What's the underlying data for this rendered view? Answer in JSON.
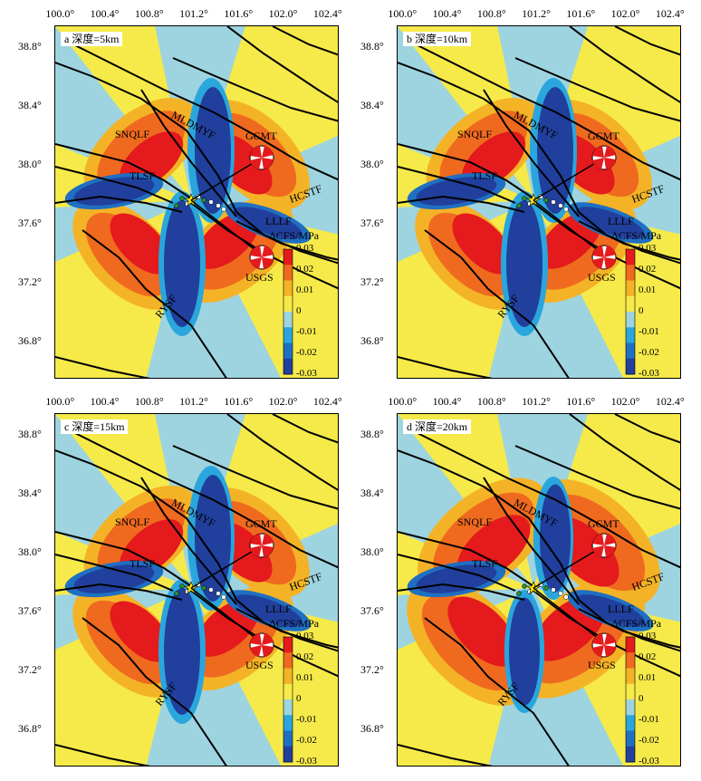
{
  "x_ticks": [
    "100.0°",
    "100.4°",
    "100.8°",
    "101.2°",
    "101.6°",
    "102.0°",
    "102.4°"
  ],
  "y_ticks": [
    "38.8°",
    "38.4°",
    "38.0°",
    "37.6°",
    "37.2°",
    "36.8°"
  ],
  "faults": [
    "SNQLF",
    "MLDMYF",
    "TLSF",
    "HCSTF",
    "LLLF",
    "RYSF"
  ],
  "mechanisms": [
    "GCMT",
    "USGS"
  ],
  "colorbar": {
    "title": "ΔCFS/MPa",
    "ticks": [
      "0.03",
      "0.02",
      "0.01",
      "0",
      "-0.01",
      "-0.02",
      "-0.03"
    ],
    "colors": [
      "#213f9c",
      "#1f6fc2",
      "#2aa6dc",
      "#9ed4e0",
      "#f6ea4a",
      "#f4b326",
      "#ef6a1f",
      "#e41a1c"
    ]
  },
  "panels": [
    {
      "label": "a 深度=5km"
    },
    {
      "label": "b 深度=10km"
    },
    {
      "label": "c 深度=15km"
    },
    {
      "label": "d 深度=20km"
    }
  ]
}
